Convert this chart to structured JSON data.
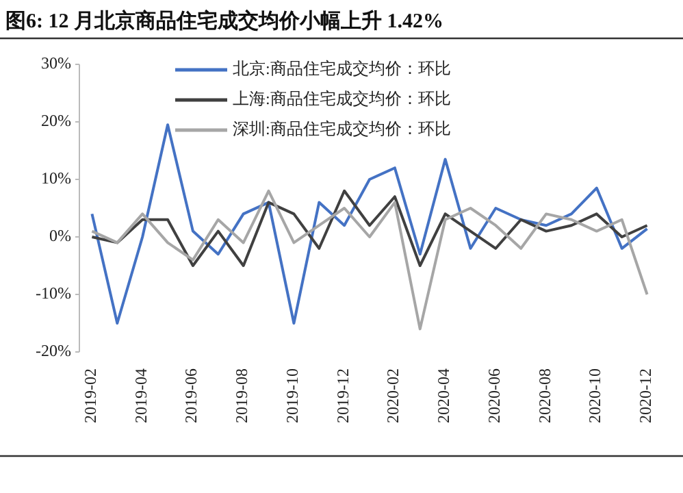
{
  "chart_data": {
    "type": "line",
    "title": "图6:  12 月北京商品住宅成交均价小幅上升 1.42%",
    "categories": [
      "2019-02",
      null,
      "2019-04",
      null,
      "2019-06",
      null,
      "2019-08",
      null,
      "2019-10",
      null,
      "2019-12",
      null,
      "2020-02",
      null,
      "2020-04",
      null,
      "2020-06",
      null,
      "2020-08",
      null,
      "2020-10",
      null,
      "2020-12"
    ],
    "series": [
      {
        "name": "北京:商品住宅成交均价：环比",
        "color": "#4472c4",
        "values": [
          4,
          -15,
          0,
          19.5,
          1,
          -3,
          4,
          6,
          -15,
          6,
          2,
          10,
          12,
          -3,
          13.5,
          -2,
          5,
          3,
          2,
          4,
          8.5,
          -2,
          1.42
        ]
      },
      {
        "name": "上海:商品住宅成交均价：环比",
        "color": "#404040",
        "values": [
          0,
          -1,
          3,
          3,
          -5,
          1,
          -5,
          6,
          4,
          -2,
          8,
          2,
          7,
          -5,
          4,
          1,
          -2,
          3,
          1,
          2,
          4,
          0,
          2
        ]
      },
      {
        "name": "深圳:商品住宅成交均价：环比",
        "color": "#a6a6a6",
        "values": [
          1,
          -1,
          4,
          -1,
          -4,
          3,
          -1,
          8,
          -1,
          2,
          5,
          0,
          6,
          -16,
          3,
          5,
          2,
          -2,
          4,
          3,
          1,
          3,
          -10
        ]
      }
    ],
    "ylim": [
      -20,
      30
    ],
    "yticks": [
      {
        "value": -20,
        "label": "-20%"
      },
      {
        "value": -10,
        "label": "-10%"
      },
      {
        "value": 0,
        "label": "0%"
      },
      {
        "value": 10,
        "label": "10%"
      },
      {
        "value": 20,
        "label": "20%"
      },
      {
        "value": 30,
        "label": "30%"
      }
    ],
    "legend": "top"
  }
}
